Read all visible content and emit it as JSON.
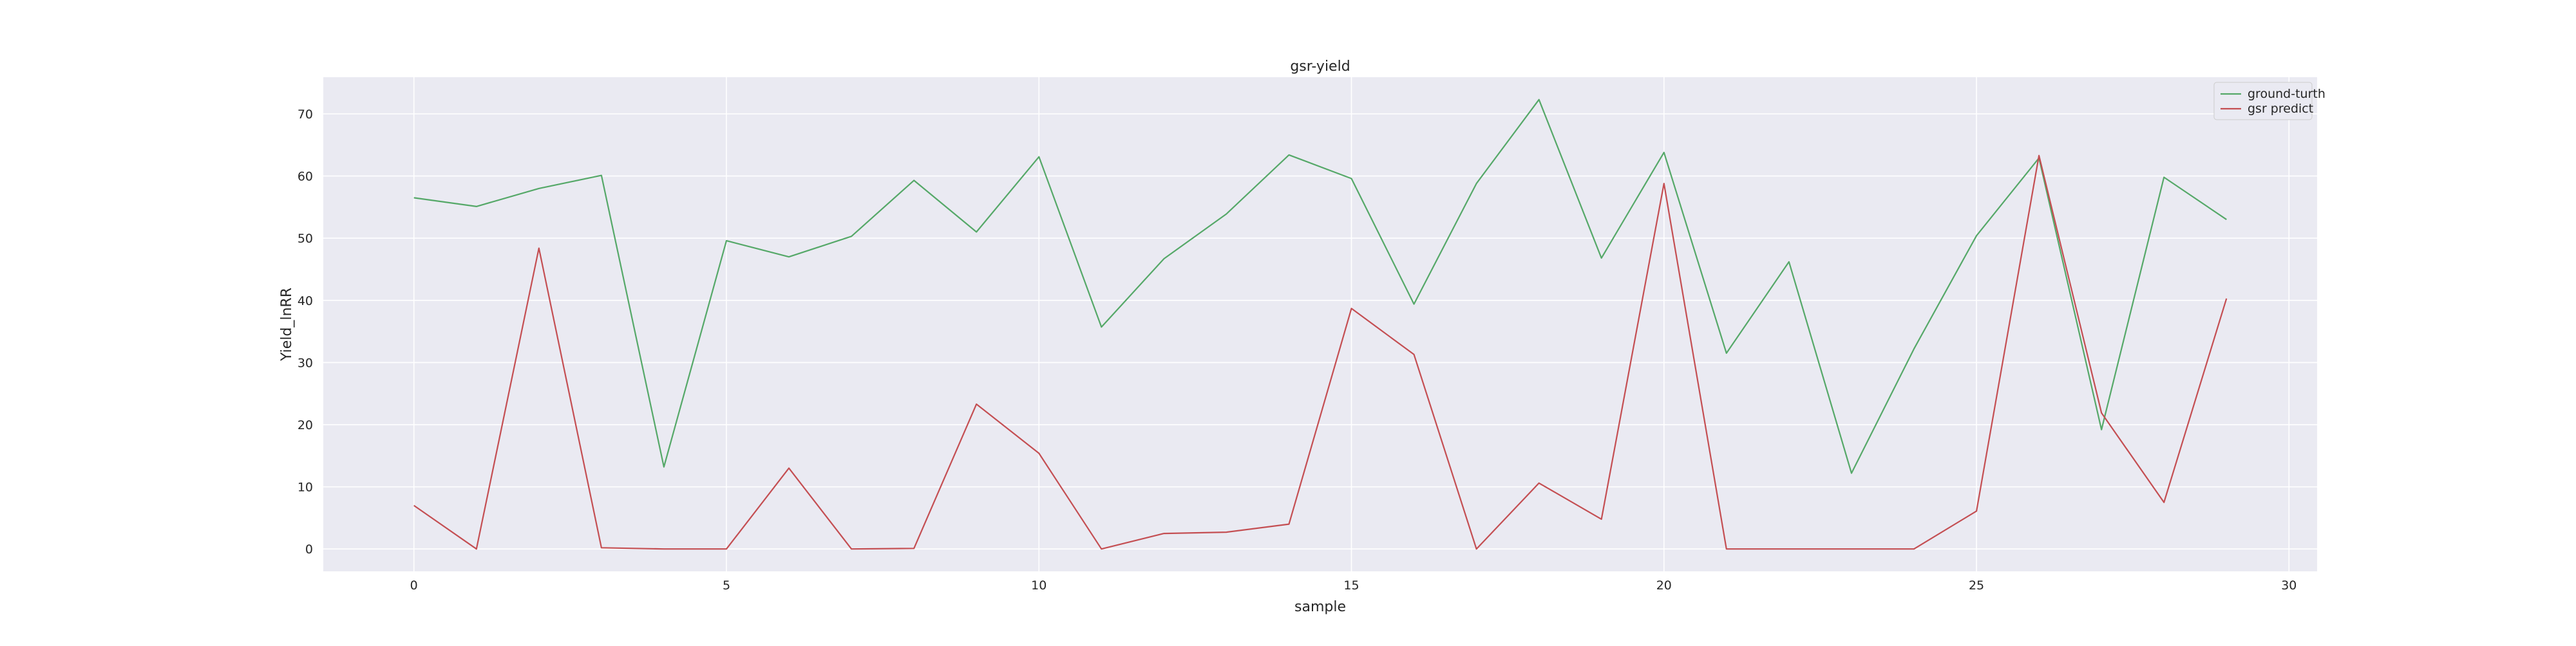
{
  "chart_data": {
    "type": "line",
    "title": "gsr-yield",
    "xlabel": "sample",
    "ylabel": "Yield_lnRR",
    "xlim": [
      -1.45,
      30.45
    ],
    "ylim": [
      -3.6,
      75.9
    ],
    "xticks": [
      0,
      5,
      10,
      15,
      20,
      25,
      30
    ],
    "yticks": [
      0,
      10,
      20,
      30,
      40,
      50,
      60,
      70
    ],
    "grid": true,
    "legend_position": "top-right",
    "background_color": "#eaeaf2",
    "grid_color": "#ffffff",
    "x": [
      0,
      1,
      2,
      3,
      4,
      5,
      6,
      7,
      8,
      9,
      10,
      11,
      12,
      13,
      14,
      15,
      16,
      17,
      18,
      19,
      20,
      21,
      22,
      23,
      24,
      25,
      26,
      27,
      28,
      29
    ],
    "series": [
      {
        "name": "ground-turth",
        "color": "#55a868",
        "values": [
          56.5,
          55.1,
          58.0,
          60.1,
          13.2,
          49.6,
          47.0,
          50.3,
          59.3,
          51.0,
          63.1,
          35.7,
          46.7,
          53.9,
          63.4,
          59.6,
          39.4,
          58.8,
          72.3,
          46.8,
          63.8,
          31.5,
          46.2,
          12.2,
          32.2,
          50.4,
          62.9,
          19.2,
          59.8,
          53.0
        ]
      },
      {
        "name": "gsr predict",
        "color": "#c44e52",
        "values": [
          7.0,
          0.0,
          48.4,
          0.2,
          0.0,
          0.0,
          13.0,
          0.0,
          0.1,
          23.3,
          15.4,
          0.0,
          2.5,
          2.7,
          4.0,
          38.7,
          31.3,
          0.0,
          10.6,
          4.8,
          58.8,
          0.0,
          0.0,
          0.0,
          0.0,
          6.1,
          63.3,
          21.9,
          7.5,
          40.3
        ]
      }
    ]
  }
}
